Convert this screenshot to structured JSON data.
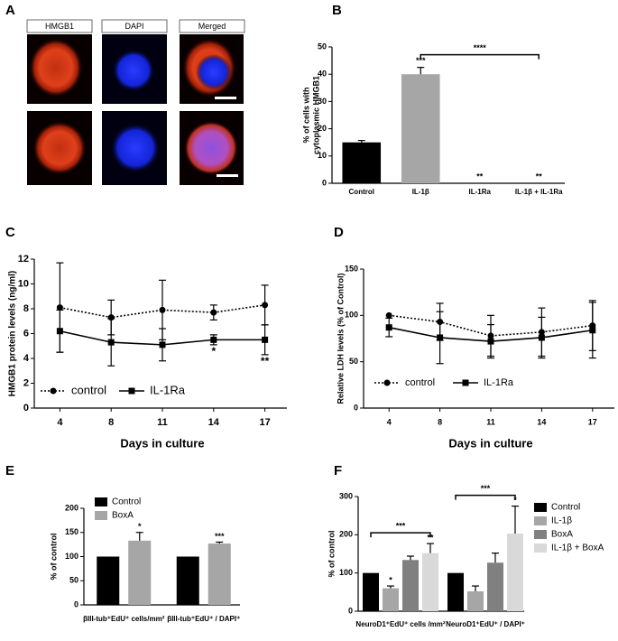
{
  "chart_data": [
    {
      "type": "image",
      "panel": "A",
      "labels": [
        "HMGB1",
        "DAPI",
        "Merged"
      ],
      "label_colors": [
        "#e8312a",
        "#3a8fd9",
        "#000000"
      ]
    },
    {
      "type": "bar",
      "panel": "B",
      "ylabel": [
        "% of cells with",
        "cytoplasmic HMGB1"
      ],
      "categories": [
        "Control",
        "IL-1β",
        "IL-1Ra",
        "IL-1β + IL-1Ra"
      ],
      "values": [
        15,
        40,
        0,
        0
      ],
      "errors": [
        0.7,
        2.5,
        0,
        0
      ],
      "colors": [
        "#000000",
        "#a6a6a6",
        "#000000",
        "#a6a6a6"
      ],
      "significance": [
        null,
        "***",
        "**",
        "**"
      ],
      "comparisons": [
        {
          "label": "****",
          "between": [
            1,
            3
          ]
        }
      ],
      "ylim": [
        0,
        50
      ],
      "yticks": [
        0,
        10,
        20,
        30,
        40,
        50
      ]
    },
    {
      "type": "line",
      "panel": "C",
      "ylabel": "HMGB1 protein levels (ng/ml)",
      "xlabel": "Days in culture",
      "categories": [
        "4",
        "8",
        "11",
        "14",
        "17"
      ],
      "series": [
        {
          "name": "control",
          "color": "#000000",
          "dash": "dotted",
          "marker": "circle",
          "values": [
            8.1,
            7.3,
            7.9,
            7.7,
            8.3
          ],
          "errors": [
            3.6,
            1.4,
            2.4,
            0.6,
            1.6
          ]
        },
        {
          "name": "IL-1Ra",
          "color": "#000000",
          "dash": "solid",
          "marker": "square",
          "values": [
            6.2,
            5.3,
            5.1,
            5.5,
            5.5
          ],
          "errors": [
            1.7,
            1.9,
            1.3,
            0.4,
            1.2
          ],
          "significance": [
            null,
            null,
            null,
            "*",
            "**"
          ]
        }
      ],
      "ylim": [
        0,
        12
      ],
      "yticks": [
        0,
        2,
        4,
        6,
        8,
        10,
        12
      ]
    },
    {
      "type": "line",
      "panel": "D",
      "ylabel": "Relative LDH levels (% of Control)",
      "xlabel": "Days in culture",
      "categories": [
        "4",
        "8",
        "11",
        "14",
        "17"
      ],
      "series": [
        {
          "name": "control",
          "color": "#000000",
          "dash": "dotted",
          "marker": "circle",
          "values": [
            100,
            93,
            78,
            82,
            89
          ],
          "errors": [
            0,
            20,
            22,
            26,
            27
          ]
        },
        {
          "name": "IL-1Ra",
          "color": "#000000",
          "dash": "solid",
          "marker": "square",
          "values": [
            87,
            76,
            72,
            76,
            84
          ],
          "errors": [
            10,
            28,
            18,
            22,
            30
          ]
        }
      ],
      "ylim": [
        0,
        150
      ],
      "yticks": [
        0,
        50,
        100,
        150
      ]
    },
    {
      "type": "grouped_bar",
      "panel": "E",
      "ylabel": "% of control",
      "categories": [
        "βIII-tub⁺EdU⁺ cells/mm²",
        "βIII-tub⁺EdU⁺ / DAPI⁺"
      ],
      "series": [
        {
          "name": "Control",
          "color": "#000000",
          "values": [
            100,
            100
          ],
          "errors": [
            0,
            0
          ]
        },
        {
          "name": "BoxA",
          "color": "#a6a6a6",
          "values": [
            133,
            127
          ],
          "errors": [
            17,
            3
          ],
          "significance": [
            "*",
            "***"
          ]
        }
      ],
      "ylim": [
        0,
        200
      ],
      "yticks": [
        0,
        50,
        100,
        150,
        200
      ]
    },
    {
      "type": "grouped_bar",
      "panel": "F",
      "ylabel": "% of control",
      "categories": [
        "NeuroD1⁺EdU⁺ cells /mm²",
        "NeuroD1⁺EdU⁺ / DAPI⁺"
      ],
      "series": [
        {
          "name": "Control",
          "color": "#000000",
          "values": [
            100,
            100
          ],
          "errors": [
            0,
            0
          ]
        },
        {
          "name": "IL-1β",
          "color": "#a6a6a6",
          "values": [
            60,
            52
          ],
          "errors": [
            6,
            14
          ],
          "significance": [
            "*",
            null
          ]
        },
        {
          "name": "BoxA",
          "color": "#808080",
          "values": [
            134,
            127
          ],
          "errors": [
            10,
            25
          ]
        },
        {
          "name": "IL-1β + BoxA",
          "color": "#d9d9d9",
          "values": [
            152,
            203
          ],
          "errors": [
            25,
            72
          ],
          "significance": [
            "**",
            "*"
          ]
        }
      ],
      "comparisons": [
        {
          "label": "***",
          "group": 0,
          "between": [
            0,
            3
          ]
        },
        {
          "label": "***",
          "group": 1,
          "between": [
            0,
            3
          ]
        }
      ],
      "ylim": [
        0,
        300
      ],
      "yticks": [
        0,
        100,
        200,
        300
      ]
    }
  ]
}
